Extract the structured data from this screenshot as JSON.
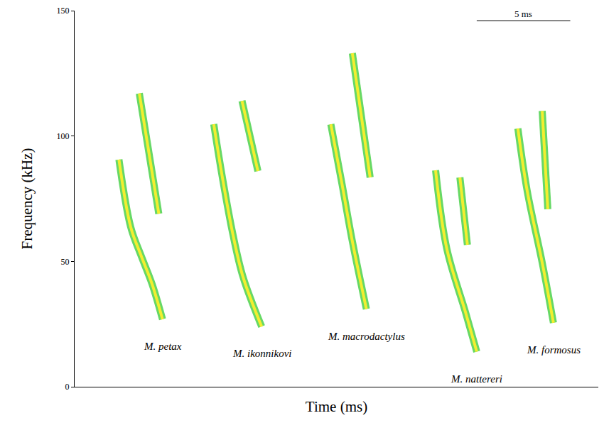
{
  "chart_data": {
    "type": "line",
    "x_label": "Time (ms)",
    "y_label": "Frequency (kHz)",
    "xlim": [
      0,
      28
    ],
    "ylim": [
      0,
      150
    ],
    "yticks": [
      0,
      50,
      100,
      150
    ],
    "tick_labels": "y",
    "grid": false,
    "color": "#f2ee30",
    "series": [
      {
        "name": "M. petax",
        "x": [
          2.37,
          3.0,
          3.57,
          4.14,
          4.7,
          null,
          3.46,
          4.5
        ],
        "values": [
          90.6,
          63.7,
          52,
          41,
          26.9,
          null,
          117,
          69
        ]
      },
      {
        "name": "M. ikonnikovi",
        "x": [
          7.44,
          7.9,
          8.46,
          9.0,
          10.0,
          null,
          8.95,
          9.8
        ],
        "values": [
          104.7,
          83.5,
          60.9,
          43.9,
          24,
          null,
          114,
          86
        ]
      },
      {
        "name": "M. macrodactylus",
        "x": [
          13.7,
          14.3,
          14.85,
          15.6,
          null,
          14.85,
          15.8
        ],
        "values": [
          104.7,
          80.7,
          58,
          31,
          null,
          133,
          83.5
        ]
      },
      {
        "name": "M. nattereri",
        "x": [
          19.3,
          19.9,
          20.9,
          21.5,
          null,
          20.6,
          21.0
        ],
        "values": [
          86.3,
          55,
          29.7,
          14,
          null,
          83.5,
          56.6
        ]
      },
      {
        "name": "M. formosus",
        "x": [
          23.7,
          24.2,
          25.0,
          25.6,
          null,
          25.0,
          25.3
        ],
        "values": [
          103,
          78,
          49.5,
          25.5,
          null,
          110,
          70.8
        ]
      }
    ],
    "scale_bar": {
      "label": "5 ms",
      "value": 5
    }
  }
}
